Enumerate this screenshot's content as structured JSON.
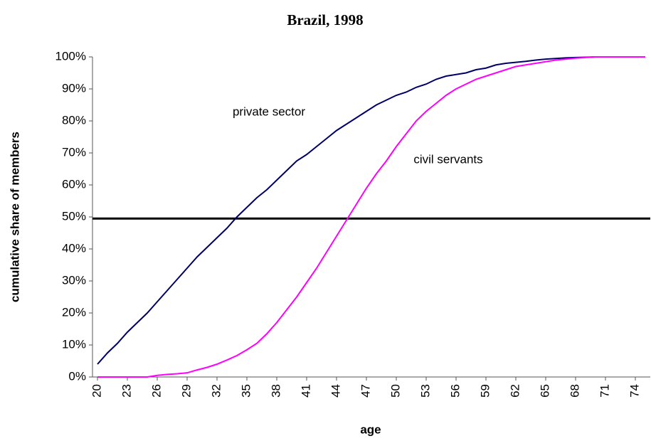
{
  "chart_data": {
    "type": "line",
    "title": "Brazil, 1998",
    "y_label": "cumulative share of members",
    "x_label": "age",
    "x": [
      20,
      21,
      22,
      23,
      24,
      25,
      26,
      27,
      28,
      29,
      30,
      31,
      32,
      33,
      34,
      35,
      36,
      37,
      38,
      39,
      40,
      41,
      42,
      43,
      44,
      45,
      46,
      47,
      48,
      49,
      50,
      51,
      52,
      53,
      54,
      55,
      56,
      57,
      58,
      59,
      60,
      61,
      62,
      63,
      64,
      65,
      66,
      67,
      68,
      69,
      70,
      71,
      72,
      73,
      74,
      75
    ],
    "series": [
      {
        "name": "private sector",
        "color": "#000066",
        "values": [
          4,
          7.5,
          10.5,
          14,
          17,
          20,
          23.5,
          27,
          30.5,
          34,
          37.5,
          40.5,
          43.5,
          46.5,
          50,
          53,
          56,
          58.5,
          61.5,
          64.5,
          67.5,
          69.5,
          72,
          74.5,
          77,
          79,
          81,
          83,
          85,
          86.5,
          88,
          89,
          90.5,
          91.5,
          93,
          94,
          94.5,
          95,
          96,
          96.5,
          97.5,
          98,
          98.3,
          98.6,
          99,
          99.3,
          99.5,
          99.7,
          99.8,
          99.9,
          100,
          100,
          100,
          100,
          100,
          100
        ]
      },
      {
        "name": "civil servants",
        "color": "#ff00ff",
        "values": [
          0,
          0,
          0,
          0,
          0,
          0,
          0.5,
          0.8,
          1,
          1.3,
          2.2,
          3,
          4,
          5.3,
          6.7,
          8.5,
          10.5,
          13.5,
          17,
          21,
          25,
          29.5,
          34,
          39,
          44,
          49,
          54,
          59,
          63.5,
          67.5,
          72,
          76,
          80,
          83,
          85.5,
          88,
          90,
          91.5,
          93,
          94,
          95,
          96,
          97,
          97.5,
          98,
          98.5,
          99,
          99.3,
          99.6,
          99.8,
          100,
          100,
          100,
          100,
          100,
          100
        ]
      }
    ],
    "reference_line": 49.5,
    "xlim": [
      19.5,
      75.5
    ],
    "xticks": [
      20,
      23,
      26,
      29,
      32,
      35,
      38,
      41,
      44,
      47,
      50,
      53,
      56,
      59,
      62,
      65,
      68,
      71,
      74
    ],
    "ylim": [
      0,
      100
    ],
    "yticks": [
      {
        "value": 0,
        "label": "0%"
      },
      {
        "value": 10,
        "label": "10%"
      },
      {
        "value": 20,
        "label": "20%"
      },
      {
        "value": 30,
        "label": "30%"
      },
      {
        "value": 40,
        "label": "40%"
      },
      {
        "value": 50,
        "label": "50%"
      },
      {
        "value": 60,
        "label": "60%"
      },
      {
        "value": 70,
        "label": "70%"
      },
      {
        "value": 80,
        "label": "80%"
      },
      {
        "value": 90,
        "label": "90%"
      },
      {
        "value": 100,
        "label": "100%"
      }
    ],
    "grid": false
  }
}
